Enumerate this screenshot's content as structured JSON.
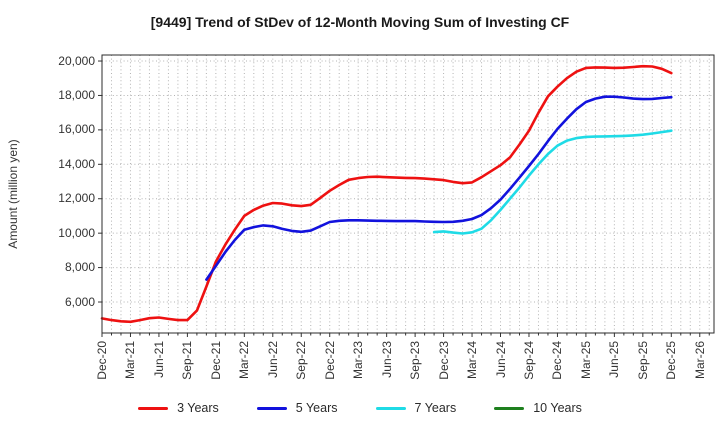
{
  "title": "[9449]  Trend of StDev of 12-Month Moving Sum of Investing CF",
  "y_axis": {
    "label": "Amount (million yen)",
    "tick_values": [
      6000,
      8000,
      10000,
      12000,
      14000,
      16000,
      18000,
      20000
    ],
    "tick_labels": [
      "6,000",
      "8,000",
      "10,000",
      "12,000",
      "14,000",
      "16,000",
      "18,000",
      "20,000"
    ]
  },
  "x_axis": {
    "tick_labels": [
      "Dec-20",
      "Mar-21",
      "Jun-21",
      "Sep-21",
      "Dec-21",
      "Mar-22",
      "Jun-22",
      "Sep-22",
      "Dec-22",
      "Mar-23",
      "Jun-23",
      "Sep-23",
      "Dec-23",
      "Mar-24",
      "Jun-24",
      "Sep-24",
      "Dec-24",
      "Mar-25",
      "Jun-25",
      "Sep-25",
      "Dec-25",
      "Mar-26"
    ],
    "tick_interval_months": 3
  },
  "chart_data": {
    "type": "line",
    "title": "[9449]  Trend of StDev of 12-Month Moving Sum of Investing CF",
    "xlabel": "",
    "ylabel": "Amount (million yen)",
    "x_unit": "months since Dec-2020",
    "xlim_months": [
      0,
      64.5
    ],
    "ylim": [
      4200,
      20350
    ],
    "y_ticks": [
      6000,
      8000,
      10000,
      12000,
      14000,
      16000,
      18000,
      20000
    ],
    "grid": "dotted gray; vertical line every month, horizontal every 2000",
    "legend_position": "bottom center",
    "series": [
      {
        "name": "3 Years",
        "color": "#ee1111",
        "points": [
          [
            0,
            5050
          ],
          [
            1,
            4950
          ],
          [
            2,
            4880
          ],
          [
            3,
            4850
          ],
          [
            4,
            4950
          ],
          [
            5,
            5060
          ],
          [
            6,
            5100
          ],
          [
            7,
            5020
          ],
          [
            8,
            4950
          ],
          [
            9,
            4950
          ],
          [
            10,
            5500
          ],
          [
            11,
            6900
          ],
          [
            12,
            8350
          ],
          [
            13,
            9330
          ],
          [
            14,
            10200
          ],
          [
            15,
            11000
          ],
          [
            16,
            11350
          ],
          [
            17,
            11600
          ],
          [
            18,
            11750
          ],
          [
            19,
            11720
          ],
          [
            20,
            11620
          ],
          [
            21,
            11570
          ],
          [
            22,
            11650
          ],
          [
            23,
            12050
          ],
          [
            24,
            12460
          ],
          [
            25,
            12800
          ],
          [
            26,
            13100
          ],
          [
            27,
            13200
          ],
          [
            28,
            13260
          ],
          [
            29,
            13280
          ],
          [
            30,
            13250
          ],
          [
            31,
            13230
          ],
          [
            32,
            13210
          ],
          [
            33,
            13200
          ],
          [
            34,
            13170
          ],
          [
            35,
            13130
          ],
          [
            36,
            13080
          ],
          [
            37,
            12980
          ],
          [
            38,
            12900
          ],
          [
            39,
            12950
          ],
          [
            40,
            13250
          ],
          [
            41,
            13600
          ],
          [
            42,
            13950
          ],
          [
            43,
            14400
          ],
          [
            44,
            15150
          ],
          [
            45,
            15950
          ],
          [
            46,
            17000
          ],
          [
            47,
            17950
          ],
          [
            48,
            18510
          ],
          [
            49,
            19000
          ],
          [
            50,
            19380
          ],
          [
            51,
            19600
          ],
          [
            52,
            19630
          ],
          [
            53,
            19620
          ],
          [
            54,
            19600
          ],
          [
            55,
            19610
          ],
          [
            56,
            19650
          ],
          [
            57,
            19700
          ],
          [
            58,
            19680
          ],
          [
            59,
            19550
          ],
          [
            60,
            19300
          ]
        ]
      },
      {
        "name": "5 Years",
        "color": "#1212dd",
        "points": [
          [
            11,
            7300
          ],
          [
            12,
            8100
          ],
          [
            13,
            8900
          ],
          [
            14,
            9600
          ],
          [
            15,
            10200
          ],
          [
            16,
            10350
          ],
          [
            17,
            10450
          ],
          [
            18,
            10400
          ],
          [
            19,
            10250
          ],
          [
            20,
            10130
          ],
          [
            21,
            10080
          ],
          [
            22,
            10150
          ],
          [
            23,
            10400
          ],
          [
            24,
            10650
          ],
          [
            25,
            10720
          ],
          [
            26,
            10750
          ],
          [
            27,
            10750
          ],
          [
            28,
            10730
          ],
          [
            29,
            10720
          ],
          [
            30,
            10710
          ],
          [
            31,
            10700
          ],
          [
            32,
            10700
          ],
          [
            33,
            10700
          ],
          [
            34,
            10680
          ],
          [
            35,
            10660
          ],
          [
            36,
            10650
          ],
          [
            37,
            10660
          ],
          [
            38,
            10720
          ],
          [
            39,
            10820
          ],
          [
            40,
            11050
          ],
          [
            41,
            11450
          ],
          [
            42,
            11950
          ],
          [
            43,
            12570
          ],
          [
            44,
            13230
          ],
          [
            45,
            13900
          ],
          [
            46,
            14600
          ],
          [
            47,
            15350
          ],
          [
            48,
            16050
          ],
          [
            49,
            16650
          ],
          [
            50,
            17200
          ],
          [
            51,
            17620
          ],
          [
            52,
            17820
          ],
          [
            53,
            17930
          ],
          [
            54,
            17930
          ],
          [
            55,
            17880
          ],
          [
            56,
            17820
          ],
          [
            57,
            17790
          ],
          [
            58,
            17800
          ],
          [
            59,
            17850
          ],
          [
            60,
            17900
          ]
        ]
      },
      {
        "name": "7 Years",
        "color": "#1fdbe6",
        "points": [
          [
            35,
            10060
          ],
          [
            36,
            10100
          ],
          [
            37,
            10030
          ],
          [
            38,
            9980
          ],
          [
            39,
            10050
          ],
          [
            40,
            10260
          ],
          [
            41,
            10750
          ],
          [
            42,
            11350
          ],
          [
            43,
            12000
          ],
          [
            44,
            12650
          ],
          [
            45,
            13350
          ],
          [
            46,
            14000
          ],
          [
            47,
            14600
          ],
          [
            48,
            15080
          ],
          [
            49,
            15380
          ],
          [
            50,
            15520
          ],
          [
            51,
            15590
          ],
          [
            52,
            15610
          ],
          [
            53,
            15620
          ],
          [
            54,
            15630
          ],
          [
            55,
            15650
          ],
          [
            56,
            15680
          ],
          [
            57,
            15720
          ],
          [
            58,
            15790
          ],
          [
            59,
            15870
          ],
          [
            60,
            15950
          ]
        ]
      },
      {
        "name": "10 Years",
        "color": "#1e801e",
        "points": []
      }
    ]
  }
}
